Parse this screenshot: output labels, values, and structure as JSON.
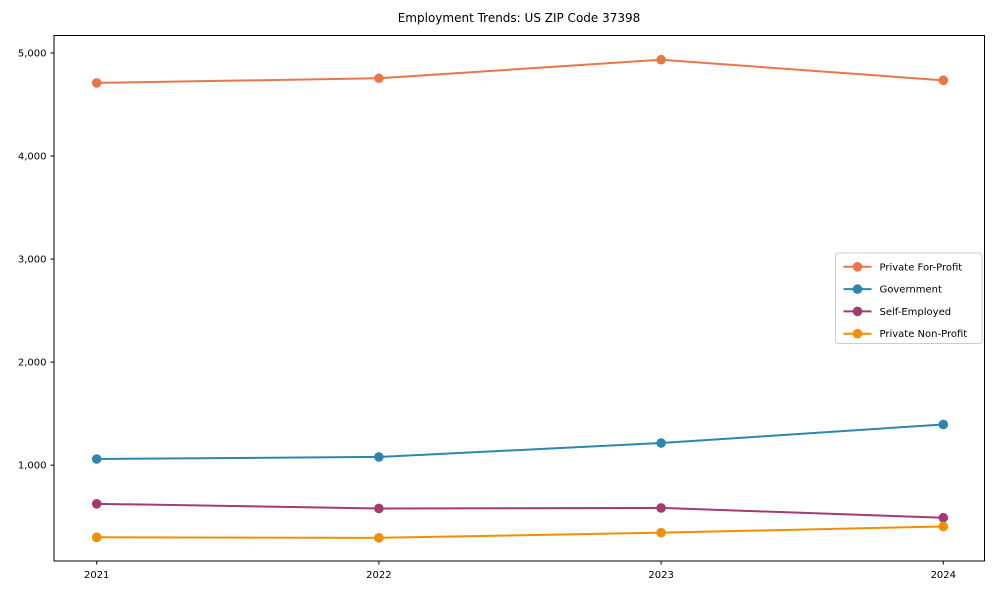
{
  "figure": {
    "title": "Employment Trends: US ZIP Code 37398"
  },
  "chart_data": {
    "type": "line",
    "title": "Employment Trends: US ZIP Code 37398",
    "x": [
      "2021",
      "2022",
      "2023",
      "2024"
    ],
    "series": [
      {
        "name": "Private For-Profit",
        "color": "#E8764B",
        "values": [
          4710,
          4755,
          4935,
          4735
        ]
      },
      {
        "name": "Government",
        "color": "#2E86AB",
        "values": [
          1060,
          1080,
          1215,
          1395
        ]
      },
      {
        "name": "Self-Employed",
        "color": "#A23B72",
        "values": [
          625,
          580,
          585,
          490
        ]
      },
      {
        "name": "Private Non-Profit",
        "color": "#F18F01",
        "values": [
          300,
          295,
          345,
          405
        ]
      }
    ],
    "xlabel": "",
    "ylabel": "",
    "ylim": [
      70,
      5170
    ],
    "yticks": [
      1000,
      2000,
      3000,
      4000,
      5000
    ],
    "ytick_labels": [
      "1,000",
      "2,000",
      "3,000",
      "4,000",
      "5,000"
    ],
    "xtick_labels": [
      "2021",
      "2022",
      "2023",
      "2024"
    ],
    "grid": false,
    "legend": {
      "position": "center right",
      "background": "#ffffff",
      "border_color": "#cccccc"
    },
    "background": "#ffffff",
    "axis_color": "#000000",
    "tick_label_color": "#000000",
    "marker": "circle",
    "line_width": 2,
    "marker_radius": 4.8
  }
}
